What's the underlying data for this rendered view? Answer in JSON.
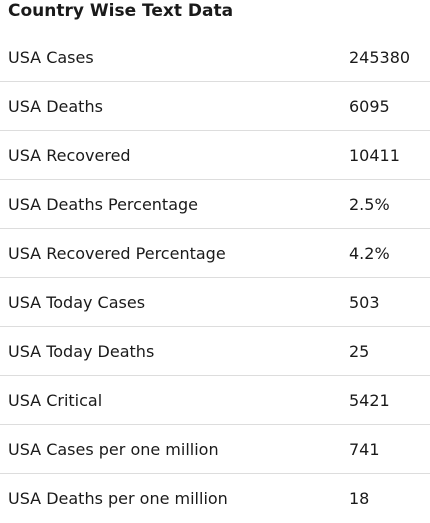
{
  "title": "Country Wise Text Data",
  "rows": [
    {
      "label": "USA Cases",
      "value": "245380"
    },
    {
      "label": "USA Deaths",
      "value": "6095"
    },
    {
      "label": "USA Recovered",
      "value": "10411"
    },
    {
      "label": "USA Deaths Percentage",
      "value": "2.5%"
    },
    {
      "label": "USA Recovered Percentage",
      "value": "4.2%"
    },
    {
      "label": "USA Today Cases",
      "value": "503"
    },
    {
      "label": "USA Today Deaths",
      "value": "25"
    },
    {
      "label": "USA Critical",
      "value": "5421"
    },
    {
      "label": "USA Cases per one million",
      "value": "741"
    },
    {
      "label": "USA Deaths per one million",
      "value": "18"
    }
  ]
}
